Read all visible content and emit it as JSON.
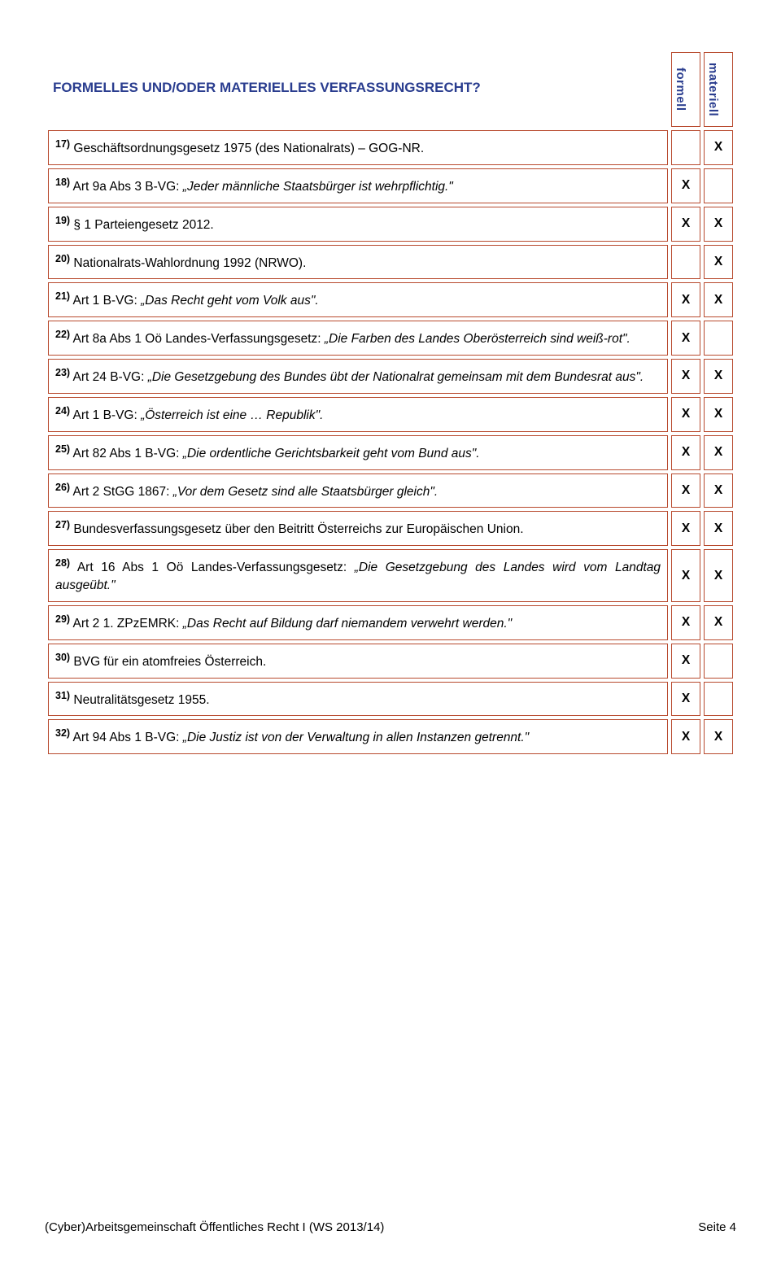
{
  "title": "FORMELLES UND/ODER MATERIELLES VERFASSUNGSRECHT?",
  "col_formell": "formell",
  "col_materiell": "materiell",
  "rows": [
    {
      "no": "17)",
      "text": "Geschäftsordnungsgesetz 1975 (des Nationalrats) – GOG-NR.",
      "italic": false,
      "f": "",
      "m": "X"
    },
    {
      "no": "18)",
      "prefix": "Art 9a Abs 3 B-VG: ",
      "quote": "„Jeder männliche Staatsbürger ist wehrpflichtig.\"",
      "f": "X",
      "m": ""
    },
    {
      "no": "19)",
      "text": "§ 1 Parteiengesetz 2012.",
      "italic": false,
      "f": "X",
      "m": "X"
    },
    {
      "no": "20)",
      "text": "Nationalrats-Wahlordnung 1992 (NRWO).",
      "italic": false,
      "f": "",
      "m": "X"
    },
    {
      "no": "21)",
      "prefix": "Art 1 B-VG: ",
      "quote": "„Das Recht geht vom Volk aus\".",
      "f": "X",
      "m": "X"
    },
    {
      "no": "22)",
      "prefix": "Art 8a Abs 1 Oö Landes-Verfassungsgesetz: ",
      "quote": "„Die Farben des Landes Oberösterreich sind weiß-rot\".",
      "f": "X",
      "m": ""
    },
    {
      "no": "23)",
      "prefix": "Art 24 B-VG: ",
      "quote": "„Die Gesetzgebung des Bundes übt der Nationalrat gemeinsam mit dem Bundesrat aus\".",
      "f": "X",
      "m": "X"
    },
    {
      "no": "24)",
      "prefix": "Art 1 B-VG: ",
      "quote": "„Österreich ist eine … Republik\".",
      "f": "X",
      "m": "X"
    },
    {
      "no": "25)",
      "prefix": "Art 82 Abs 1 B-VG: ",
      "quote": "„Die ordentliche Gerichtsbarkeit geht vom Bund aus\".",
      "f": "X",
      "m": "X"
    },
    {
      "no": "26)",
      "prefix": "Art 2 StGG 1867: ",
      "quote": "„Vor dem Gesetz sind alle Staatsbürger gleich\".",
      "f": "X",
      "m": "X"
    },
    {
      "no": "27)",
      "text": "Bundesverfassungsgesetz über den Beitritt Österreichs zur Europäischen Union.",
      "italic": false,
      "f": "X",
      "m": "X"
    },
    {
      "no": "28)",
      "prefix": "Art 16 Abs 1 Oö Landes-Verfassungsgesetz: ",
      "quote": "„Die Gesetzgebung des Landes wird vom Landtag ausgeübt.\"",
      "f": "X",
      "m": "X"
    },
    {
      "no": "29)",
      "prefix": "Art 2 1. ZPzEMRK: ",
      "quote": "„Das Recht auf Bildung darf niemandem verwehrt werden.\"",
      "f": "X",
      "m": "X"
    },
    {
      "no": "30)",
      "text": "BVG für ein atomfreies Österreich.",
      "italic": false,
      "f": "X",
      "m": ""
    },
    {
      "no": "31)",
      "text": "Neutralitätsgesetz 1955.",
      "italic": false,
      "f": "X",
      "m": ""
    },
    {
      "no": "32)",
      "prefix": "Art 94 Abs 1 B-VG: ",
      "quote": "„Die Justiz ist von der Verwaltung in allen Instanzen getrennt.\"",
      "f": "X",
      "m": "X"
    }
  ],
  "footer_left": "(Cyber)Arbeitsgemeinschaft Öffentliches Recht I  (WS 2013/14)",
  "footer_right": "Seite 4",
  "colors": {
    "heading": "#2a3d8f",
    "border": "#b84a2e",
    "text": "#000000",
    "background": "#ffffff"
  }
}
